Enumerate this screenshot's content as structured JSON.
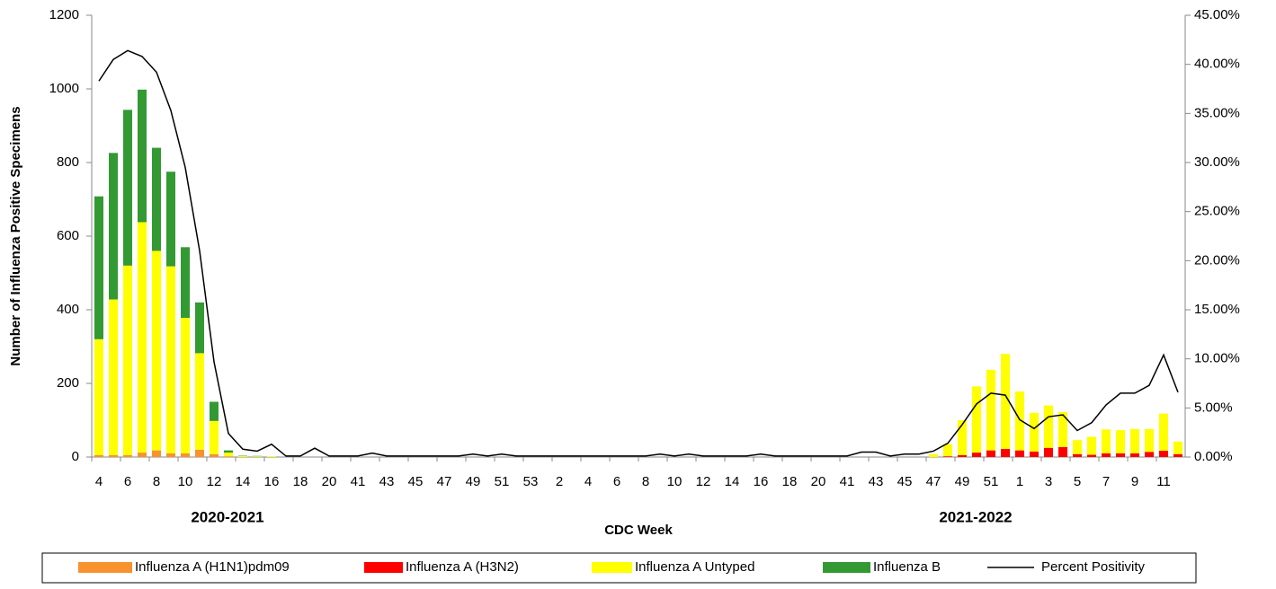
{
  "chart_data": {
    "type": "bar",
    "stacked": true,
    "y_label": "Number of Influenza Positive Specimens",
    "x_label": "CDC Week",
    "annotations": [
      "2020-2021",
      "2021-2022"
    ],
    "categories": [
      "4",
      null,
      "6",
      null,
      "8",
      null,
      "10",
      null,
      "12",
      null,
      "14",
      null,
      "16",
      null,
      "18",
      null,
      "20",
      null,
      "41",
      null,
      "43",
      null,
      "45",
      null,
      "47",
      null,
      "49",
      null,
      "51",
      null,
      "53",
      null,
      "2",
      null,
      "4",
      null,
      "6",
      null,
      "8",
      null,
      "10",
      null,
      "12",
      null,
      "14",
      null,
      "16",
      null,
      "18",
      null,
      "20",
      null,
      "41",
      null,
      "43",
      null,
      "45",
      null,
      "47",
      null,
      "49",
      null,
      "51",
      null,
      "1",
      null,
      "3",
      null,
      "5",
      null,
      "7",
      null,
      "9",
      null,
      "11",
      null
    ],
    "series": [
      {
        "name": "Influenza A (H1N1)pdm09",
        "color": "#f7922f",
        "values": [
          5,
          5,
          5,
          12,
          18,
          10,
          10,
          20,
          8,
          2,
          0,
          0,
          0,
          0,
          0,
          0,
          0,
          0,
          0,
          0,
          0,
          0,
          0,
          0,
          0,
          0,
          0,
          0,
          0,
          0,
          0,
          0,
          0,
          0,
          0,
          0,
          0,
          0,
          0,
          0,
          0,
          0,
          0,
          0,
          0,
          0,
          0,
          0,
          0,
          0,
          0,
          0,
          0,
          0,
          0,
          0,
          0,
          0,
          0,
          0,
          0,
          0,
          0,
          0,
          0,
          0,
          0,
          0,
          0,
          0,
          0,
          0,
          0,
          0,
          0,
          0
        ]
      },
      {
        "name": "Influenza A (H3N2)",
        "color": "#ff0000",
        "values": [
          0,
          0,
          0,
          0,
          0,
          0,
          0,
          0,
          0,
          0,
          0,
          0,
          0,
          0,
          0,
          0,
          0,
          0,
          0,
          0,
          0,
          0,
          0,
          0,
          0,
          0,
          0,
          0,
          0,
          0,
          0,
          0,
          0,
          0,
          0,
          0,
          0,
          0,
          0,
          0,
          0,
          0,
          0,
          0,
          0,
          0,
          0,
          0,
          0,
          0,
          0,
          0,
          0,
          0,
          0,
          0,
          0,
          0,
          0,
          2,
          5,
          12,
          18,
          22,
          18,
          15,
          25,
          27,
          8,
          6,
          10,
          10,
          10,
          14,
          17,
          8
        ]
      },
      {
        "name": "Influenza A Untyped",
        "color": "#ffff00",
        "values": [
          315,
          423,
          515,
          626,
          542,
          508,
          368,
          262,
          90,
          10,
          3,
          2,
          2,
          0,
          0,
          0,
          0,
          0,
          0,
          0,
          0,
          0,
          0,
          0,
          0,
          0,
          0,
          0,
          0,
          0,
          0,
          0,
          0,
          0,
          0,
          0,
          0,
          0,
          0,
          0,
          0,
          0,
          0,
          0,
          0,
          0,
          0,
          0,
          0,
          0,
          0,
          0,
          0,
          0,
          0,
          0,
          0,
          0,
          8,
          33,
          95,
          180,
          219,
          258,
          160,
          105,
          115,
          95,
          38,
          49,
          65,
          63,
          66,
          62,
          101,
          34
        ]
      },
      {
        "name": "Influenza B",
        "color": "#339933",
        "values": [
          388,
          398,
          423,
          360,
          280,
          257,
          192,
          138,
          52,
          6,
          1,
          1,
          0,
          0,
          0,
          0,
          0,
          0,
          0,
          0,
          0,
          0,
          0,
          0,
          0,
          0,
          0,
          0,
          0,
          0,
          0,
          0,
          0,
          0,
          0,
          0,
          0,
          0,
          0,
          0,
          0,
          0,
          0,
          0,
          0,
          0,
          0,
          0,
          0,
          0,
          0,
          0,
          0,
          0,
          0,
          0,
          0,
          0,
          0,
          0,
          0,
          0,
          0,
          0,
          0,
          0,
          0,
          0,
          0,
          0,
          0,
          0,
          0,
          0,
          0,
          0
        ]
      },
      {
        "name": "Percent Positivity",
        "color": "#000000",
        "type": "line",
        "axis": "y2",
        "values": [
          38.3,
          40.5,
          41.4,
          40.8,
          39.2,
          35.3,
          29.5,
          21.0,
          9.7,
          2.4,
          0.8,
          0.6,
          1.3,
          0.1,
          0.1,
          0.9,
          0.1,
          0.1,
          0.1,
          0.4,
          0.1,
          0.1,
          0.1,
          0.1,
          0.1,
          0.1,
          0.3,
          0.1,
          0.3,
          0.1,
          0.1,
          0.1,
          0.1,
          0.1,
          0.1,
          0.1,
          0.1,
          0.1,
          0.1,
          0.3,
          0.1,
          0.3,
          0.1,
          0.1,
          0.1,
          0.1,
          0.3,
          0.1,
          0.1,
          0.1,
          0.1,
          0.1,
          0.1,
          0.5,
          0.5,
          0.1,
          0.3,
          0.3,
          0.6,
          1.4,
          3.3,
          5.4,
          6.5,
          6.3,
          3.8,
          2.9,
          4.1,
          4.3,
          2.7,
          3.5,
          5.3,
          6.5,
          6.5,
          7.3,
          10.4,
          6.6
        ]
      }
    ],
    "ylim": [
      0,
      1200
    ],
    "yticks": [
      0,
      200,
      400,
      600,
      800,
      1000,
      1200
    ],
    "y2lim": [
      0,
      45
    ],
    "y2ticks": [
      {
        "value": 0,
        "label": "0.00%"
      },
      {
        "value": 5,
        "label": "5.00%"
      },
      {
        "value": 10,
        "label": "10.00%"
      },
      {
        "value": 15,
        "label": "15.00%"
      },
      {
        "value": 20,
        "label": "20.00%"
      },
      {
        "value": 25,
        "label": "25.00%"
      },
      {
        "value": 30,
        "label": "30.00%"
      },
      {
        "value": 35,
        "label": "35.00%"
      },
      {
        "value": 40,
        "label": "40.00%"
      },
      {
        "value": 45,
        "label": "45.00%"
      }
    ],
    "legend": "bottom"
  }
}
